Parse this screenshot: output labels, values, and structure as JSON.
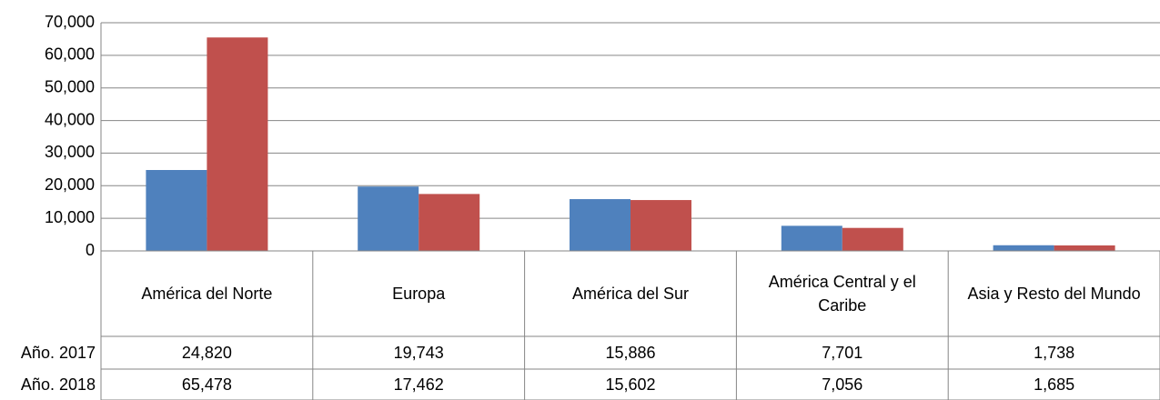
{
  "chart_data": {
    "type": "bar",
    "categories": [
      "América del Norte",
      "Europa",
      "América del Sur",
      "América Central y el Caribe",
      "Asia y Resto del Mundo"
    ],
    "series": [
      {
        "name": "Año. 2017",
        "color": "#4f81bd",
        "values": [
          24820,
          19743,
          15886,
          7701,
          1738
        ],
        "value_labels": [
          "24,820",
          "19,743",
          "15,886",
          "7,701",
          "1,738"
        ]
      },
      {
        "name": "Año. 2018",
        "color": "#c0504d",
        "values": [
          65478,
          17462,
          15602,
          7056,
          1685
        ],
        "value_labels": [
          "65,478",
          "17,462",
          "15,602",
          "7,056",
          "1,685"
        ]
      }
    ],
    "ylim": [
      0,
      70000
    ],
    "yticks": [
      0,
      {
        "value": 10000,
        "label": "10,000"
      },
      {
        "value": 20000,
        "label": "20,000"
      },
      {
        "value": 30000,
        "label": "30,000"
      },
      {
        "value": 40000,
        "label": "40,000"
      },
      {
        "value": 50000,
        "label": "50,000"
      },
      {
        "value": 60000,
        "label": "60,000"
      },
      {
        "value": 70000,
        "label": "70,000"
      }
    ],
    "grid": true
  }
}
